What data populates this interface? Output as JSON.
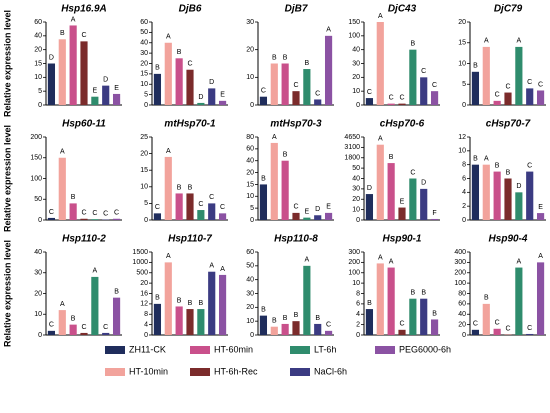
{
  "legend": [
    {
      "name": "ZH11-CK",
      "color": "#1f2d5c"
    },
    {
      "name": "HT-10min",
      "color": "#f2a39c"
    },
    {
      "name": "HT-60min",
      "color": "#c9508b"
    },
    {
      "name": "HT-6h-Rec",
      "color": "#7b2b2b"
    },
    {
      "name": "LT-6h",
      "color": "#2f8c6d"
    },
    {
      "name": "NaCl-6h",
      "color": "#3b3b82"
    },
    {
      "name": "PEG6000-6h",
      "color": "#8b52a3"
    }
  ],
  "chart_data": [
    {
      "type": "bar",
      "title": "Hsp16.9A",
      "ylabel": "Relative expression level",
      "values": [
        15,
        35,
        55,
        32,
        3,
        7,
        4
      ],
      "annotations": [
        "D",
        "B",
        "A",
        "C",
        "E",
        "D",
        "E"
      ],
      "ylim": [
        0,
        60
      ],
      "yticks": [
        0,
        5,
        10,
        15,
        20,
        40,
        60
      ]
    },
    {
      "type": "bar",
      "title": "DjB6",
      "values": [
        15,
        40,
        25,
        17,
        1,
        8,
        2
      ],
      "annotations": [
        "B",
        "A",
        "B",
        "C",
        "D",
        "D",
        "E"
      ],
      "ylim": [
        0,
        60
      ],
      "yticks": [
        0,
        5,
        10,
        15,
        20,
        30,
        40,
        50,
        60
      ]
    },
    {
      "type": "bar",
      "title": "DjB7",
      "values": [
        3,
        15,
        15,
        5,
        13,
        2,
        25
      ],
      "annotations": [
        "C",
        "B",
        "B",
        "C",
        "B",
        "C",
        "A"
      ],
      "ylim": [
        0,
        30
      ],
      "yticks": [
        0,
        10,
        20,
        30
      ]
    },
    {
      "type": "bar",
      "title": "DjC43",
      "values": [
        5,
        150,
        1,
        1,
        40,
        20,
        10
      ],
      "annotations": [
        "C",
        "A",
        "C",
        "C",
        "B",
        "C",
        "C"
      ],
      "ylim": [
        0,
        150
      ],
      "yticks": [
        0,
        10,
        20,
        30,
        40,
        100,
        150
      ]
    },
    {
      "type": "bar",
      "title": "DjC79",
      "values": [
        8,
        14,
        1,
        3,
        14,
        4,
        3.5
      ],
      "annotations": [
        "B",
        "A",
        "C",
        "C",
        "A",
        "C",
        "C"
      ],
      "ylim": [
        0,
        20
      ],
      "yticks": [
        0,
        5,
        10,
        15,
        20
      ]
    },
    {
      "type": "bar",
      "title": "Hsp60-11",
      "ylabel": "Relative expression level",
      "values": [
        5,
        150,
        40,
        3,
        2,
        1,
        3
      ],
      "annotations": [
        "C",
        "A",
        "B",
        "C",
        "C",
        "C",
        "C"
      ],
      "ylim": [
        0,
        200
      ],
      "yticks": [
        0,
        50,
        100,
        150,
        200
      ]
    },
    {
      "type": "bar",
      "title": "mtHsp70-1",
      "values": [
        2,
        19,
        8,
        8,
        3,
        5,
        2
      ],
      "annotations": [
        "C",
        "A",
        "B",
        "B",
        "C",
        "C",
        "C"
      ],
      "ylim": [
        0,
        25
      ],
      "yticks": [
        0,
        5,
        10,
        15,
        20,
        25
      ]
    },
    {
      "type": "bar",
      "title": "mtHsp70-3",
      "values": [
        15,
        70,
        40,
        3,
        1,
        2,
        3
      ],
      "annotations": [
        "B",
        "A",
        "B",
        "C",
        "E",
        "D",
        "E"
      ],
      "ylim": [
        0,
        80
      ],
      "yticks": [
        0,
        5,
        10,
        15,
        20,
        40,
        60,
        80
      ]
    },
    {
      "type": "bar",
      "title": "cHsp70-6",
      "values": [
        25,
        3500,
        900,
        12,
        40,
        30,
        1
      ],
      "annotations": [
        "D",
        "A",
        "B",
        "E",
        "C",
        "D",
        "F"
      ],
      "ylim": [
        0,
        4650
      ],
      "yticks": [
        0,
        10,
        20,
        30,
        40,
        50,
        1800,
        3100,
        4650
      ]
    },
    {
      "type": "bar",
      "title": "cHsp70-7",
      "values": [
        8,
        8,
        7,
        6,
        4,
        7,
        1
      ],
      "annotations": [
        "B",
        "A",
        "B",
        "B",
        "D",
        "C",
        "E"
      ],
      "ylim": [
        0,
        12
      ],
      "yticks": [
        0,
        2,
        4,
        6,
        8,
        10,
        12
      ]
    },
    {
      "type": "bar",
      "title": "Hsp110-2",
      "ylabel": "Relative expression level",
      "values": [
        2,
        12,
        5,
        1,
        28,
        1,
        18
      ],
      "annotations": [
        "C",
        "A",
        "B",
        "C",
        "A",
        "C",
        "B"
      ],
      "ylim": [
        0,
        40
      ],
      "yticks": [
        0,
        10,
        20,
        30,
        40
      ]
    },
    {
      "type": "bar",
      "title": "Hsp110-7",
      "values": [
        12,
        1000,
        11,
        10,
        10,
        550,
        400
      ],
      "annotations": [
        "B",
        "A",
        "B",
        "B",
        "B",
        "A",
        "A"
      ],
      "ylim": [
        0,
        1500
      ],
      "yticks": [
        0,
        4,
        8,
        12,
        16,
        20,
        500,
        1000,
        1500
      ]
    },
    {
      "type": "bar",
      "title": "Hsp110-8",
      "values": [
        14,
        6,
        8,
        10,
        50,
        8,
        3
      ],
      "annotations": [
        "B",
        "B",
        "B",
        "B",
        "A",
        "B",
        "C"
      ],
      "ylim": [
        0,
        60
      ],
      "yticks": [
        0,
        10,
        20,
        30,
        40,
        50,
        60
      ]
    },
    {
      "type": "bar",
      "title": "Hsp90-1",
      "values": [
        5,
        190,
        150,
        1,
        7,
        7,
        3
      ],
      "annotations": [
        "B",
        "A",
        "A",
        "C",
        "B",
        "B",
        "B"
      ],
      "ylim": [
        0,
        300
      ],
      "yticks": [
        0,
        2,
        4,
        6,
        8,
        10,
        100,
        200,
        300
      ]
    },
    {
      "type": "bar",
      "title": "Hsp90-4",
      "values": [
        10,
        60,
        12,
        1,
        250,
        2,
        300
      ],
      "annotations": [
        "C",
        "B",
        "C",
        "C",
        "A",
        "C",
        "A"
      ],
      "ylim": [
        0,
        400
      ],
      "yticks": [
        0,
        20,
        40,
        60,
        80,
        100,
        200,
        300,
        400
      ]
    }
  ]
}
